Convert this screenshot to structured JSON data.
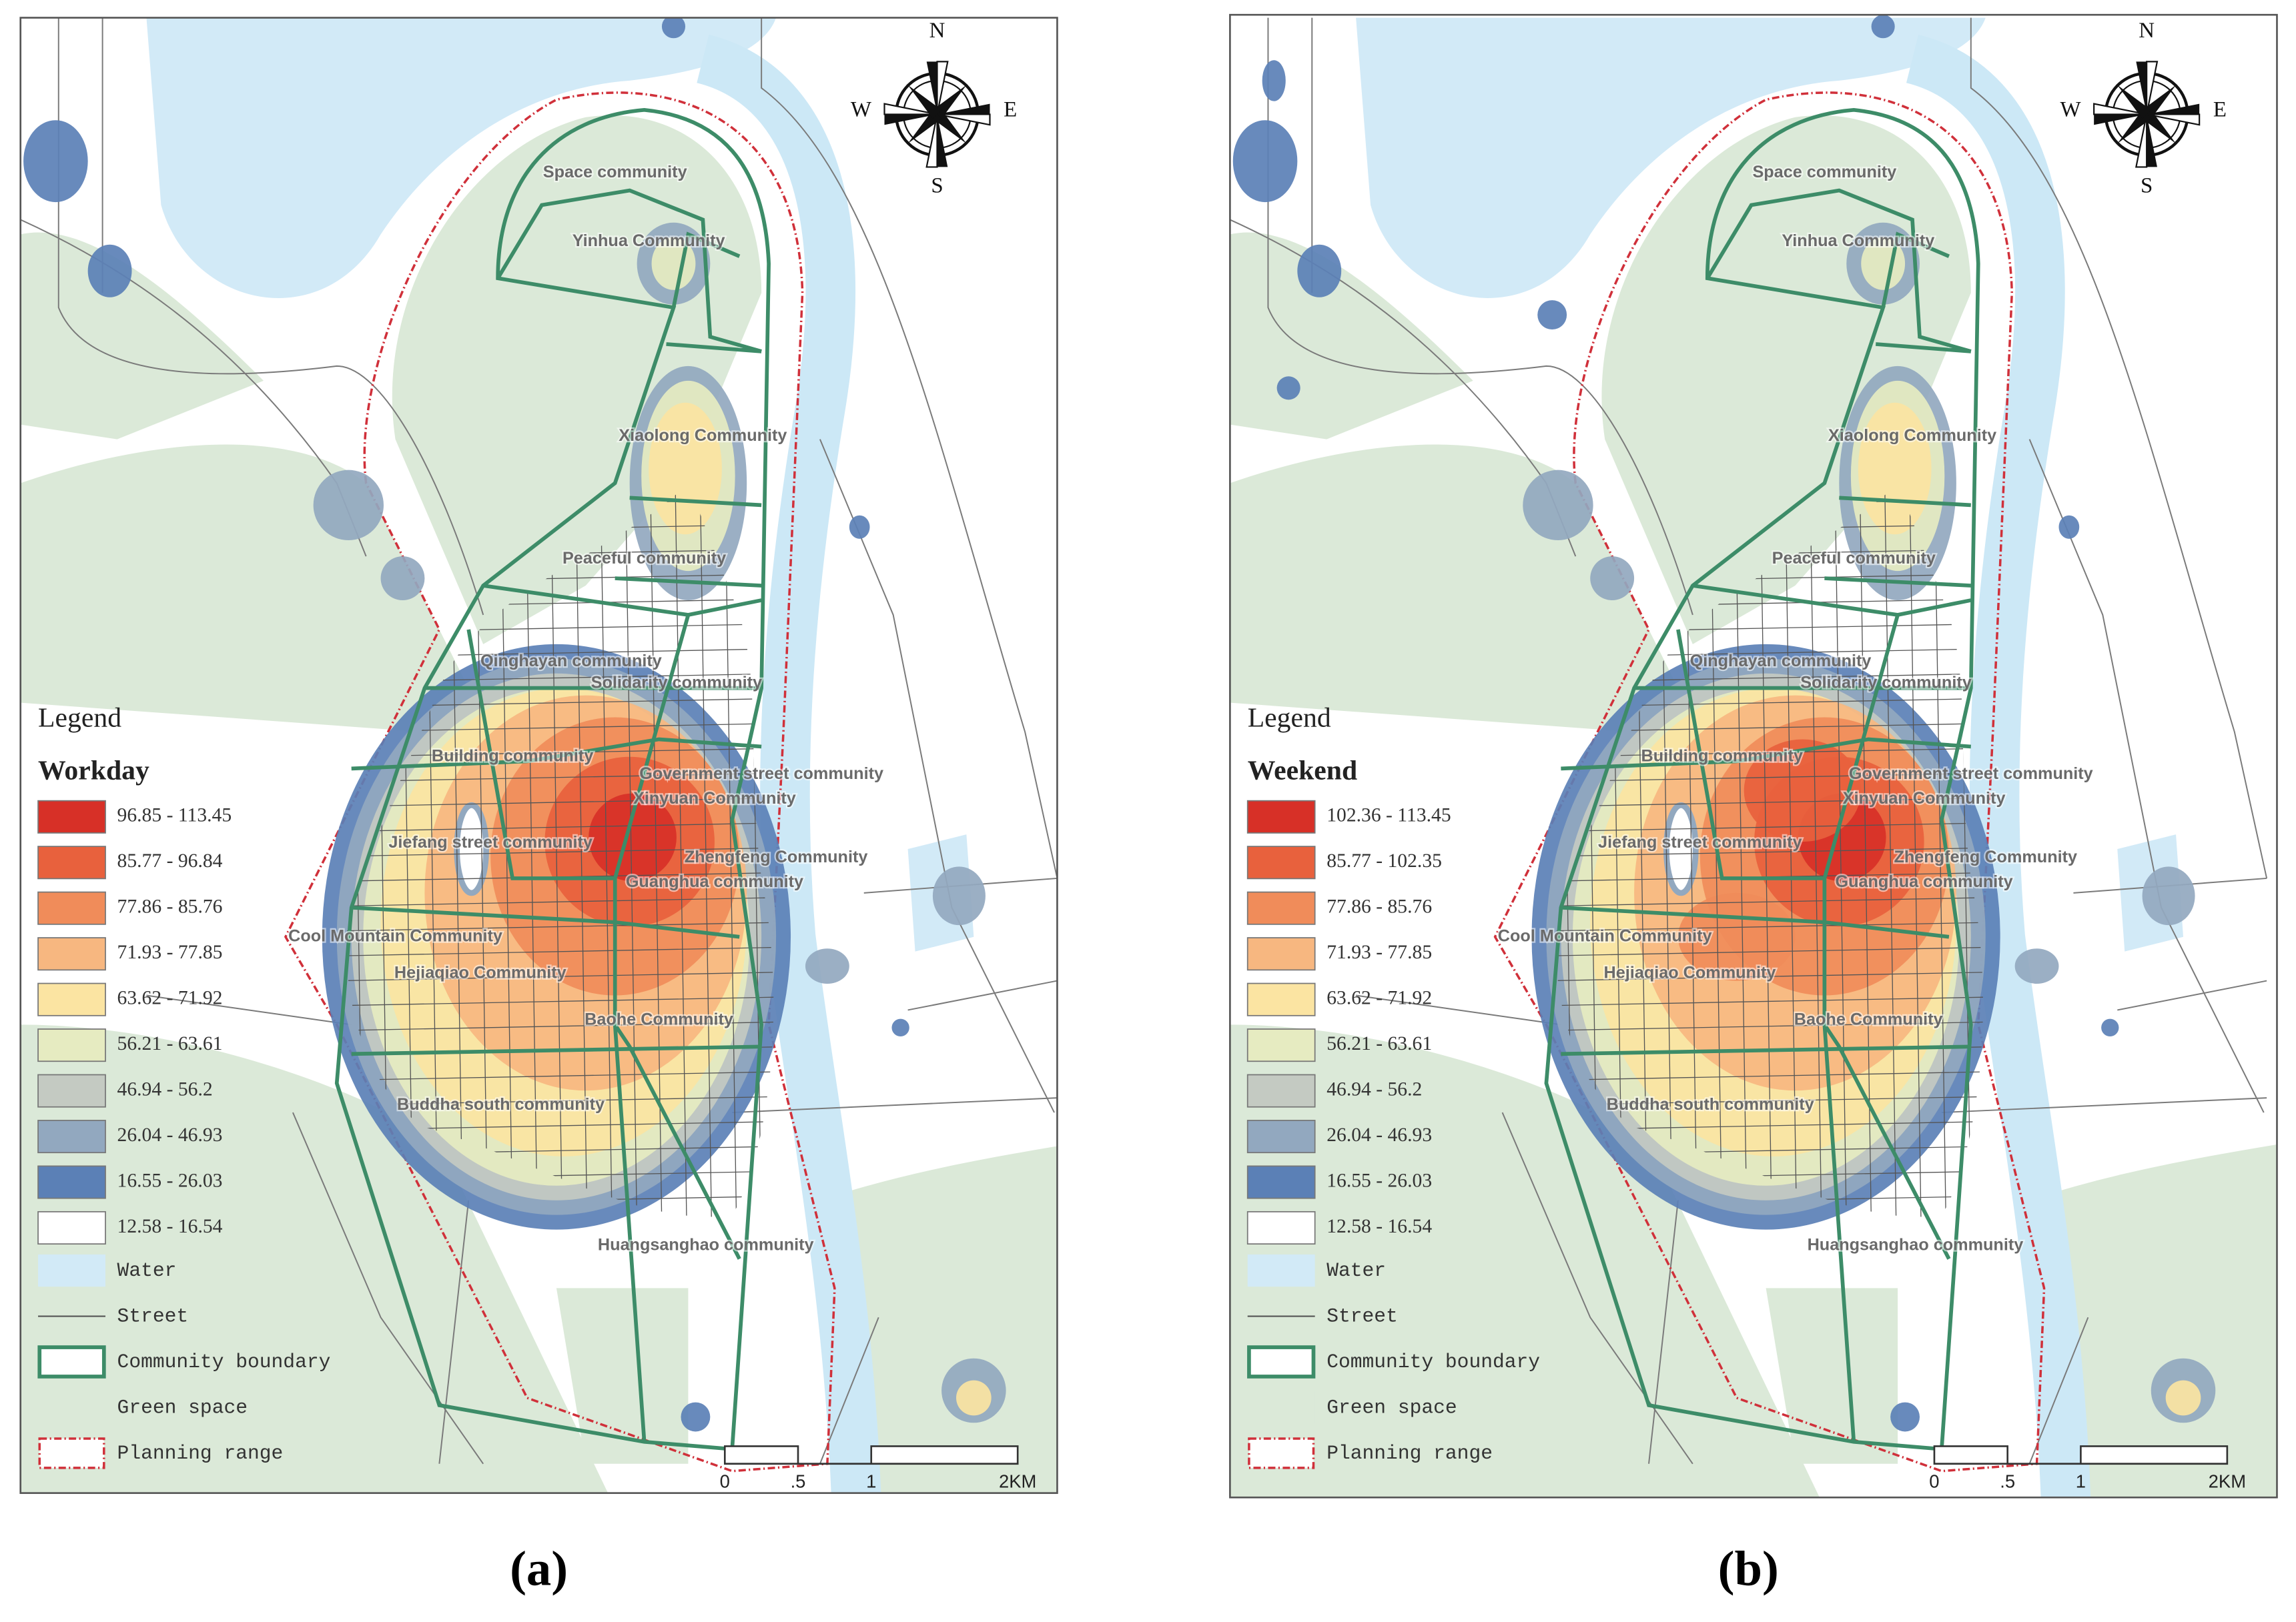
{
  "figure": {
    "panels": [
      {
        "caption": "(a)",
        "legend_title": "Legend",
        "legend_subtitle": "Workday",
        "compass": {
          "n": "N",
          "s": "S",
          "e": "E",
          "w": "W"
        },
        "classes": [
          {
            "label": "96.85 - 113.45",
            "color": "#d73027"
          },
          {
            "label": "85.77 - 96.84",
            "color": "#e8613d"
          },
          {
            "label": "77.86 - 85.76",
            "color": "#f08c5a"
          },
          {
            "label": "71.93 - 77.85",
            "color": "#f7b780"
          },
          {
            "label": "63.62 - 71.92",
            "color": "#fbe4a2"
          },
          {
            "label": "56.21 - 63.61",
            "color": "#e6ebc1"
          },
          {
            "label": "46.94 - 56.2",
            "color": "#c4cac2"
          },
          {
            "label": "26.04 - 46.93",
            "color": "#92a8bf"
          },
          {
            "label": "16.55 - 26.03",
            "color": "#5b80b6"
          },
          {
            "label": "12.58 - 16.54",
            "color": "#ffffff"
          }
        ],
        "layers": [
          "Water",
          "Street",
          "Community boundary",
          "Green space",
          "Planning range"
        ],
        "scale_labels": [
          "0",
          ".5",
          "1",
          "2KM"
        ],
        "communities": [
          "Space community",
          "Yinhua Community",
          "Xiaolong Community",
          "Peaceful community",
          "Qinghayan community",
          "Solidarity community",
          "Building community",
          "Government street community",
          "Xinyuan Community",
          "Jiefang street community",
          "Zhengfeng Community",
          "Guanghua community",
          "Cool Mountain Community",
          "Hejiaqiao Community",
          "Baohe Community",
          "Buddha south community",
          "Huangsanghao community"
        ]
      },
      {
        "caption": "(b)",
        "legend_title": "Legend",
        "legend_subtitle": "Weekend",
        "compass": {
          "n": "N",
          "s": "S",
          "e": "E",
          "w": "W"
        },
        "classes": [
          {
            "label": "102.36 - 113.45",
            "color": "#d73027"
          },
          {
            "label": "85.77 - 102.35",
            "color": "#e8613d"
          },
          {
            "label": "77.86 - 85.76",
            "color": "#f08c5a"
          },
          {
            "label": "71.93 - 77.85",
            "color": "#f7b780"
          },
          {
            "label": "63.62 - 71.92",
            "color": "#fbe4a2"
          },
          {
            "label": "56.21 - 63.61",
            "color": "#e6ebc1"
          },
          {
            "label": "46.94 - 56.2",
            "color": "#c4cac2"
          },
          {
            "label": "26.04 - 46.93",
            "color": "#92a8bf"
          },
          {
            "label": "16.55 - 26.03",
            "color": "#5b80b6"
          },
          {
            "label": "12.58 - 16.54",
            "color": "#ffffff"
          }
        ],
        "layers": [
          "Water",
          "Street",
          "Community boundary",
          "Green space",
          "Planning range"
        ],
        "scale_labels": [
          "0",
          ".5",
          "1",
          "2KM"
        ],
        "communities": [
          "Space community",
          "Yinhua Community",
          "Xiaolong Community",
          "Peaceful community",
          "Qinghayan community",
          "Solidarity community",
          "Building community",
          "Government street community",
          "Xinyuan Community",
          "Jiefang street community",
          "Zhengfeng Community",
          "Guanghua community",
          "Cool Mountain Community",
          "Hejiaqiao Community",
          "Baohe Community",
          "Buddha south community",
          "Huangsanghao community"
        ]
      }
    ]
  }
}
